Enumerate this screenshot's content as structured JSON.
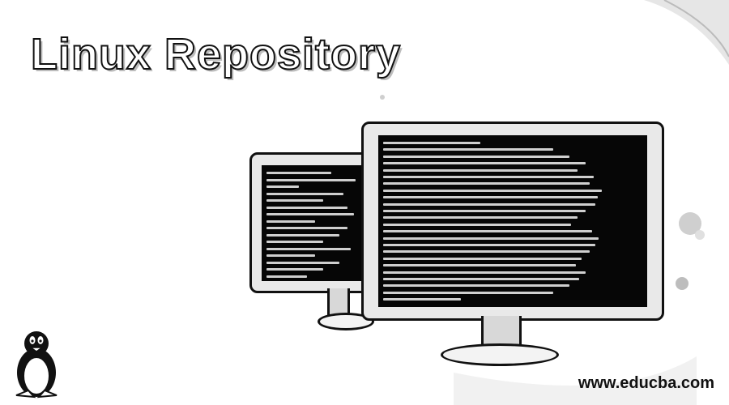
{
  "page": {
    "title": "Linux Repository",
    "website": "www.educba.com"
  },
  "colors": {
    "outline": "#111111",
    "screen": "#060606",
    "terminal_text": "#cfcfcf",
    "monitor_frame": "#e9e9e9"
  },
  "icons": [
    "tux-penguin-icon",
    "monitor-icon",
    "terminal-window-icon"
  ]
}
